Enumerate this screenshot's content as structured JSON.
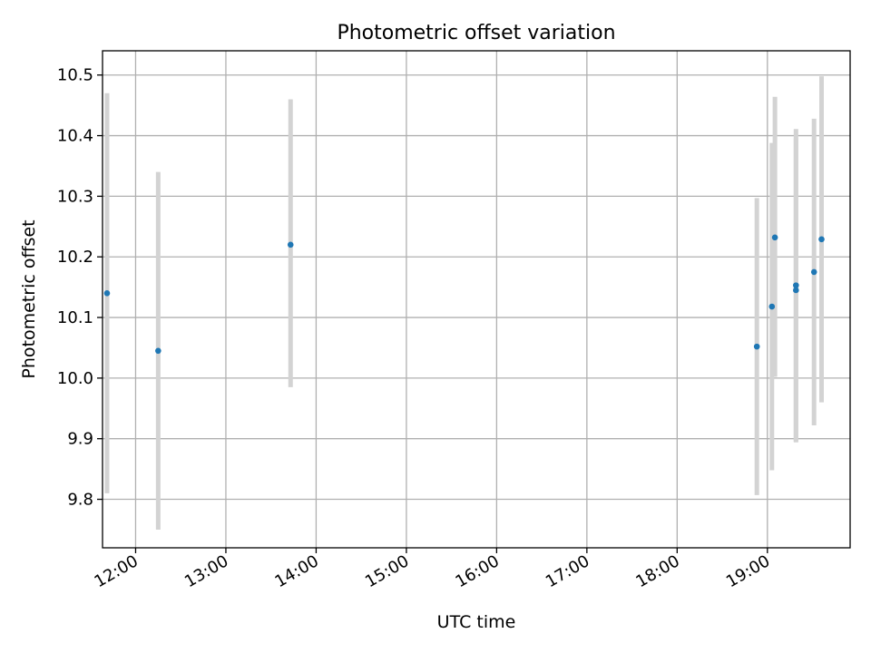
{
  "chart_data": {
    "type": "scatter",
    "title": "Photometric offset variation",
    "xlabel": "UTC time",
    "ylabel": "Photometric offset",
    "xlim": [
      "11:38",
      "19:55"
    ],
    "ylim": [
      9.72,
      10.54
    ],
    "grid": true,
    "x_ticks": [
      "12:00",
      "13:00",
      "14:00",
      "15:00",
      "16:00",
      "17:00",
      "18:00",
      "19:00"
    ],
    "y_ticks": [
      9.8,
      9.9,
      10.0,
      10.1,
      10.2,
      10.3,
      10.4,
      10.5
    ],
    "y_tick_labels": [
      "9.8",
      "9.9",
      "10.0",
      "10.1",
      "10.2",
      "10.3",
      "10.4",
      "10.5"
    ],
    "series": [
      {
        "color": "#1f77b4",
        "error_color": "#d3d3d3",
        "points": [
          {
            "x": "11:41",
            "y": 10.14,
            "y_low": 9.81,
            "y_high": 10.47
          },
          {
            "x": "12:15",
            "y": 10.045,
            "y_low": 9.75,
            "y_high": 10.34
          },
          {
            "x": "13:43",
            "y": 10.22,
            "y_low": 9.985,
            "y_high": 10.46
          },
          {
            "x": "18:53",
            "y": 10.052,
            "y_low": 9.807,
            "y_high": 10.297
          },
          {
            "x": "19:03",
            "y": 10.118,
            "y_low": 9.848,
            "y_high": 10.388
          },
          {
            "x": "19:05",
            "y": 10.232,
            "y_low": 10.002,
            "y_high": 10.464
          },
          {
            "x": "19:19",
            "y": 10.145,
            "y_low": 9.894,
            "y_high": 10.396
          },
          {
            "x": "19:19",
            "y": 10.153,
            "y_low": 9.895,
            "y_high": 10.411
          },
          {
            "x": "19:31",
            "y": 10.175,
            "y_low": 9.922,
            "y_high": 10.428
          },
          {
            "x": "19:36",
            "y": 10.229,
            "y_low": 9.96,
            "y_high": 10.498
          }
        ]
      }
    ]
  }
}
